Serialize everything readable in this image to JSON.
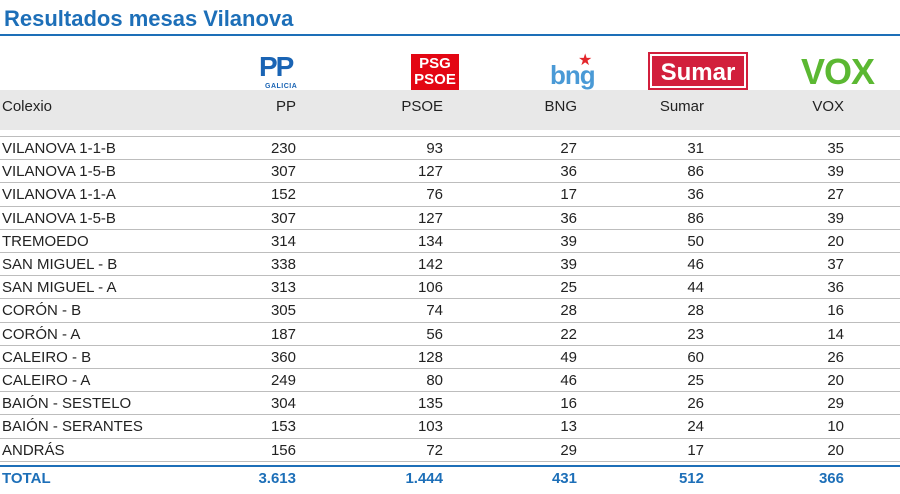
{
  "title": "Resultados mesas Vilanova",
  "logos": {
    "pp": {
      "text": "PP",
      "sub": "GALICIA"
    },
    "psoe": {
      "line1": "PSG",
      "line2": "PSOE"
    },
    "bng": {
      "text": "bng",
      "star": "★"
    },
    "sumar": {
      "text": "Sumar"
    },
    "vox": {
      "text": "VOX"
    }
  },
  "columns": [
    "Colexio",
    "PP",
    "PSOE",
    "BNG",
    "Sumar",
    "VOX"
  ],
  "rows": [
    {
      "name": "VILANOVA 1-1-B",
      "pp": "230",
      "psoe": "93",
      "bng": "27",
      "sumar": "31",
      "vox": "35"
    },
    {
      "name": "VILANOVA 1-5-B",
      "pp": "307",
      "psoe": "127",
      "bng": "36",
      "sumar": "86",
      "vox": "39"
    },
    {
      "name": "VILANOVA 1-1-A",
      "pp": "152",
      "psoe": "76",
      "bng": "17",
      "sumar": "36",
      "vox": "27"
    },
    {
      "name": "VILANOVA 1-5-B",
      "pp": "307",
      "psoe": "127",
      "bng": "36",
      "sumar": "86",
      "vox": "39"
    },
    {
      "name": "TREMOEDO",
      "pp": "314",
      "psoe": "134",
      "bng": "39",
      "sumar": "50",
      "vox": "20"
    },
    {
      "name": "SAN MIGUEL - B",
      "pp": "338",
      "psoe": "142",
      "bng": "39",
      "sumar": "46",
      "vox": "37"
    },
    {
      "name": "SAN MIGUEL - A",
      "pp": "313",
      "psoe": "106",
      "bng": "25",
      "sumar": "44",
      "vox": "36"
    },
    {
      "name": "CORÓN - B",
      "pp": "305",
      "psoe": "74",
      "bng": "28",
      "sumar": "28",
      "vox": "16"
    },
    {
      "name": "CORÓN - A",
      "pp": "187",
      "psoe": "56",
      "bng": "22",
      "sumar": "23",
      "vox": "14"
    },
    {
      "name": "CALEIRO - B",
      "pp": "360",
      "psoe": "128",
      "bng": "49",
      "sumar": "60",
      "vox": "26"
    },
    {
      "name": "CALEIRO - A",
      "pp": "249",
      "psoe": "80",
      "bng": "46",
      "sumar": "25",
      "vox": "20"
    },
    {
      "name": "BAIÓN - SESTELO",
      "pp": "304",
      "psoe": "135",
      "bng": "16",
      "sumar": "26",
      "vox": "29"
    },
    {
      "name": "BAIÓN - SERANTES",
      "pp": "153",
      "psoe": "103",
      "bng": "13",
      "sumar": "24",
      "vox": "10"
    },
    {
      "name": "ANDRÁS",
      "pp": "156",
      "psoe": "72",
      "bng": "29",
      "sumar": "17",
      "vox": "20"
    }
  ],
  "total": {
    "name": "TOTAL",
    "pp": "3.613",
    "psoe": "1.444",
    "bng": "431",
    "sumar": "512",
    "vox": "366"
  },
  "colors": {
    "accent": "#1d6fb8",
    "pp": "#1a64b4",
    "psoe": "#e30613",
    "bng": "#4a9ad6",
    "sumar": "#d21f3c",
    "vox": "#5bb832"
  }
}
